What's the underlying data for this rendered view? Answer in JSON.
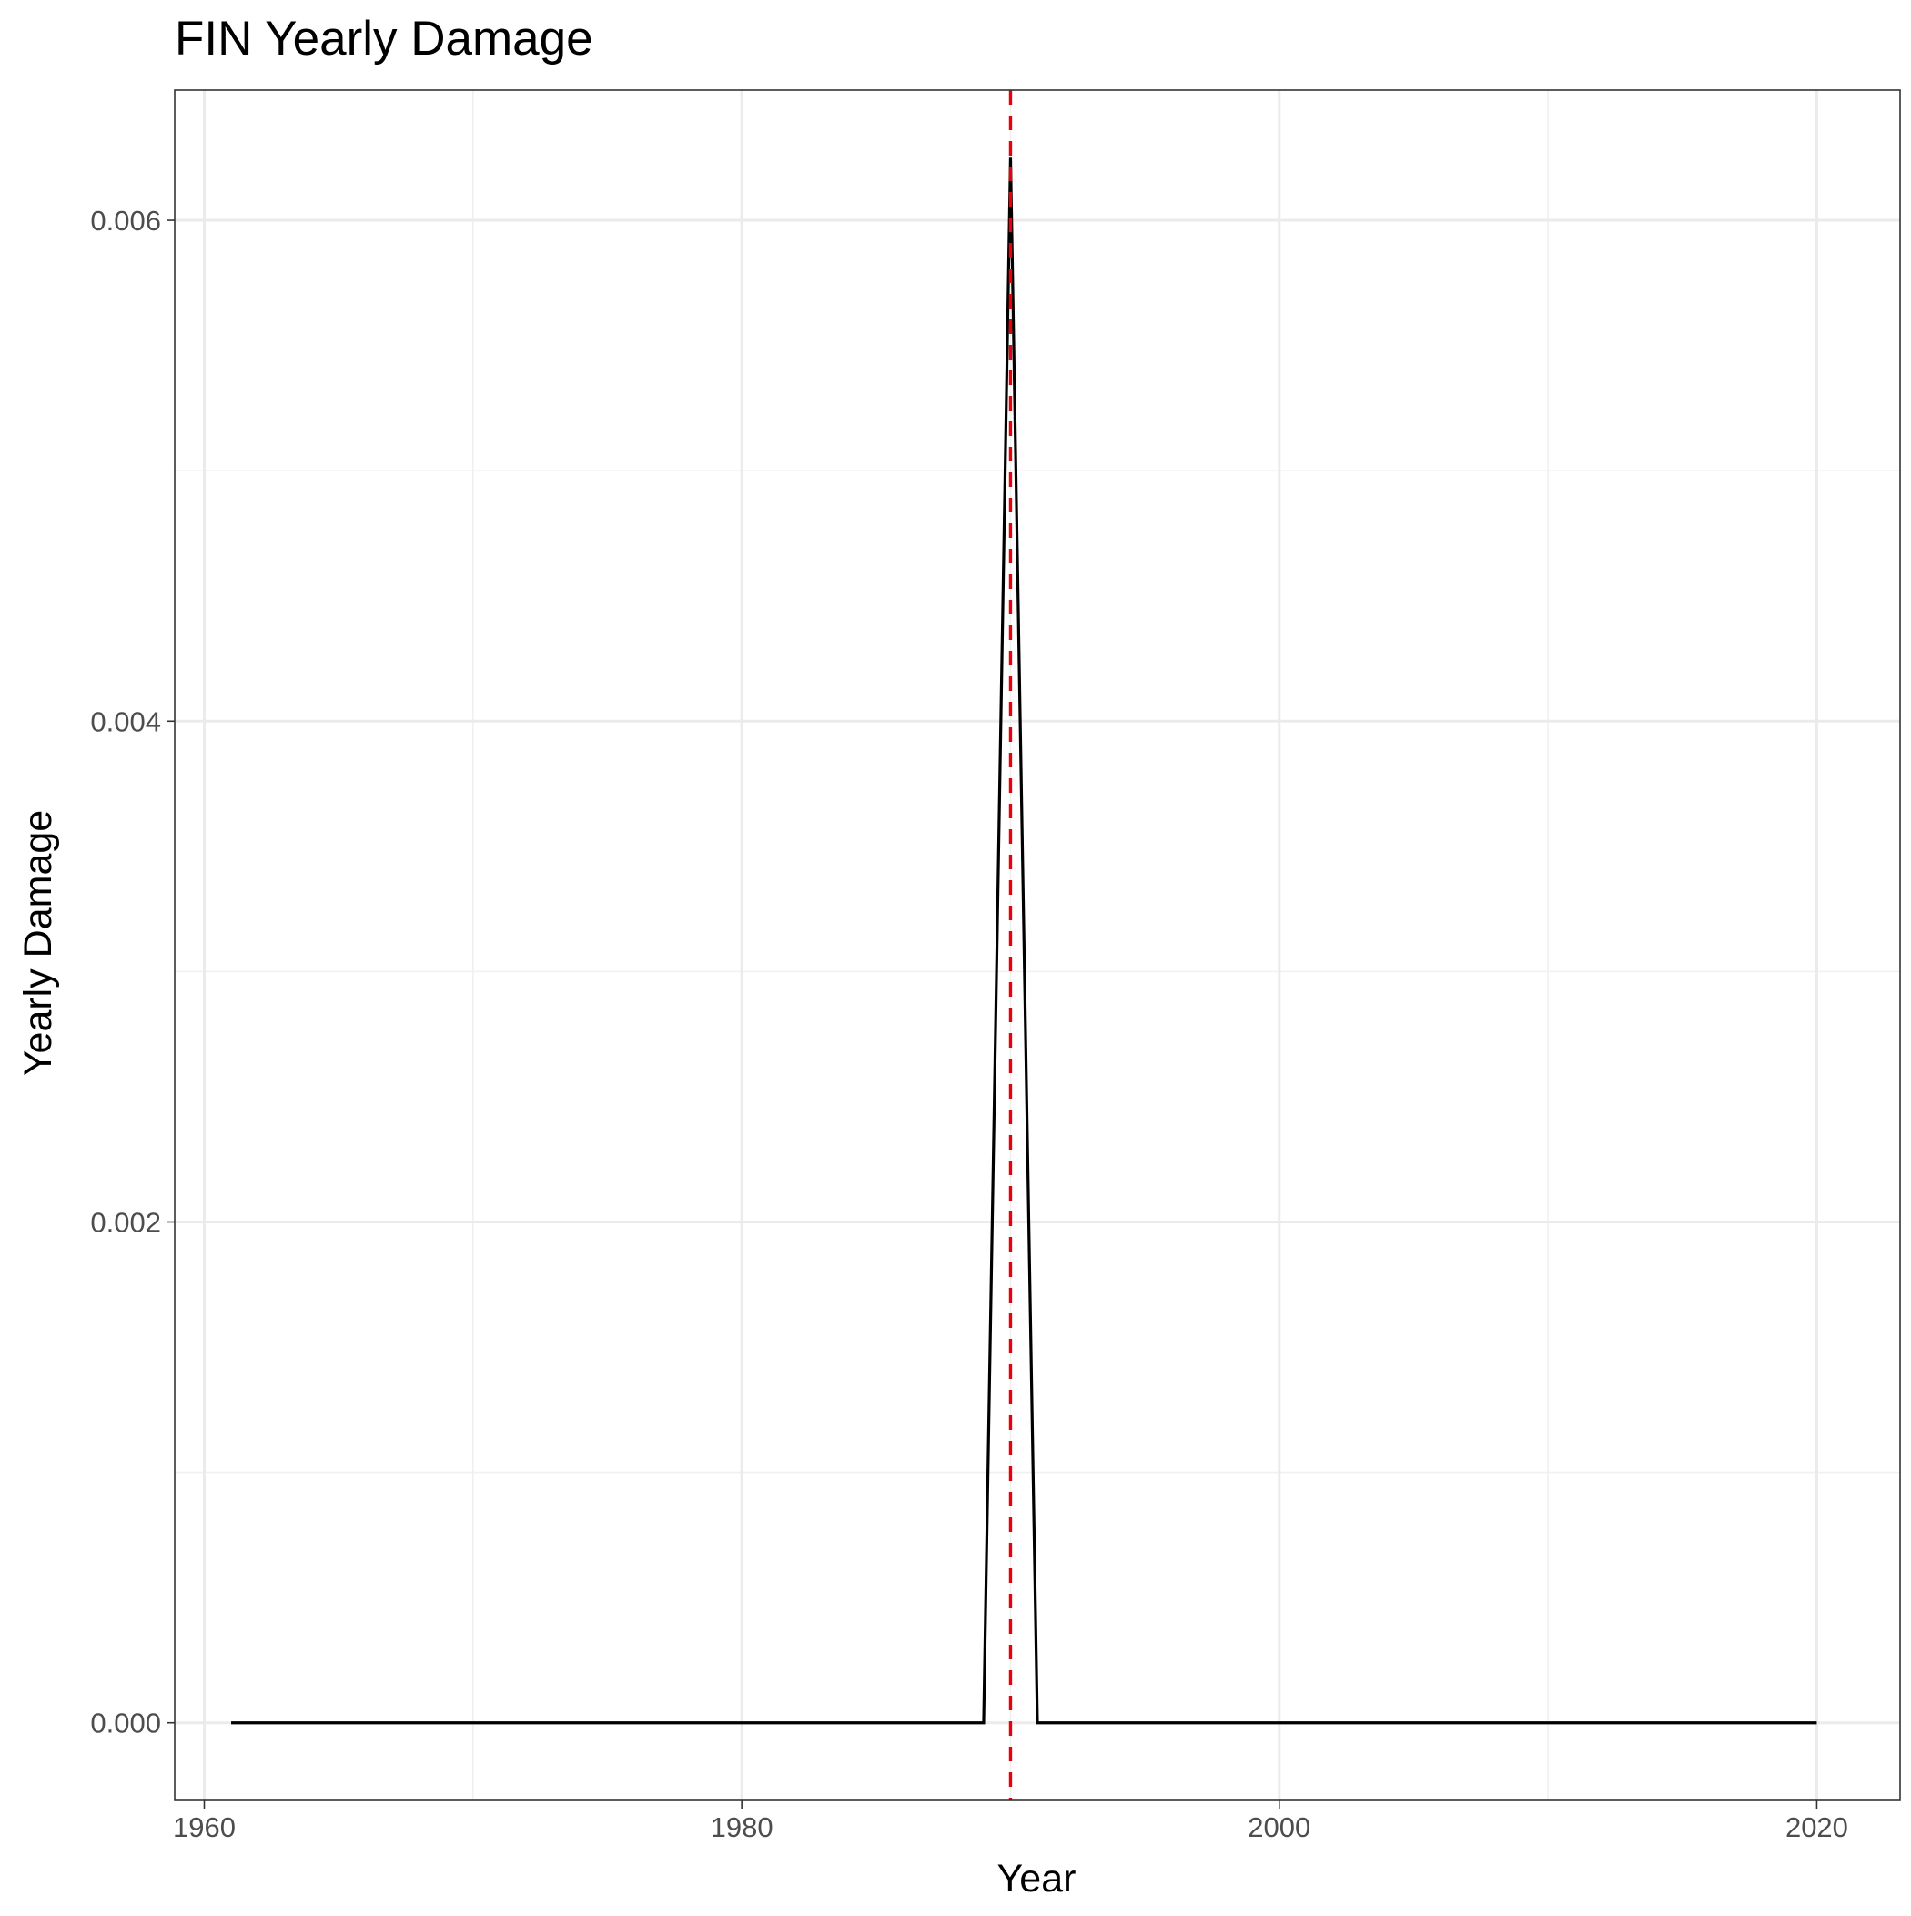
{
  "chart_data": {
    "type": "line",
    "title": "FIN Yearly Damage",
    "xlabel": "Year",
    "ylabel": "Yearly Damage",
    "xlim": [
      1958.9,
      2023.1
    ],
    "ylim": [
      -0.00031,
      0.00652
    ],
    "x_ticks": [
      1960,
      1980,
      2000,
      2020
    ],
    "x_tick_labels": [
      "1960",
      "1980",
      "2000",
      "2020"
    ],
    "x_minor_ticks": [
      1970,
      1990,
      2010
    ],
    "y_ticks": [
      0,
      0.002,
      0.004,
      0.006
    ],
    "y_tick_labels": [
      "0.000",
      "0.002",
      "0.004",
      "0.006"
    ],
    "y_minor_ticks": [
      0.001,
      0.003,
      0.005
    ],
    "grid": true,
    "series": [
      {
        "color": "#000000",
        "points": [
          {
            "x": 1961,
            "y": 0
          },
          {
            "x": 1989,
            "y": 0
          },
          {
            "x": 1990,
            "y": 0.00625
          },
          {
            "x": 1991,
            "y": 0
          },
          {
            "x": 2020,
            "y": 0
          }
        ]
      }
    ],
    "vline": {
      "x": 1990,
      "color": "#e8000b",
      "style": "dashed"
    }
  }
}
